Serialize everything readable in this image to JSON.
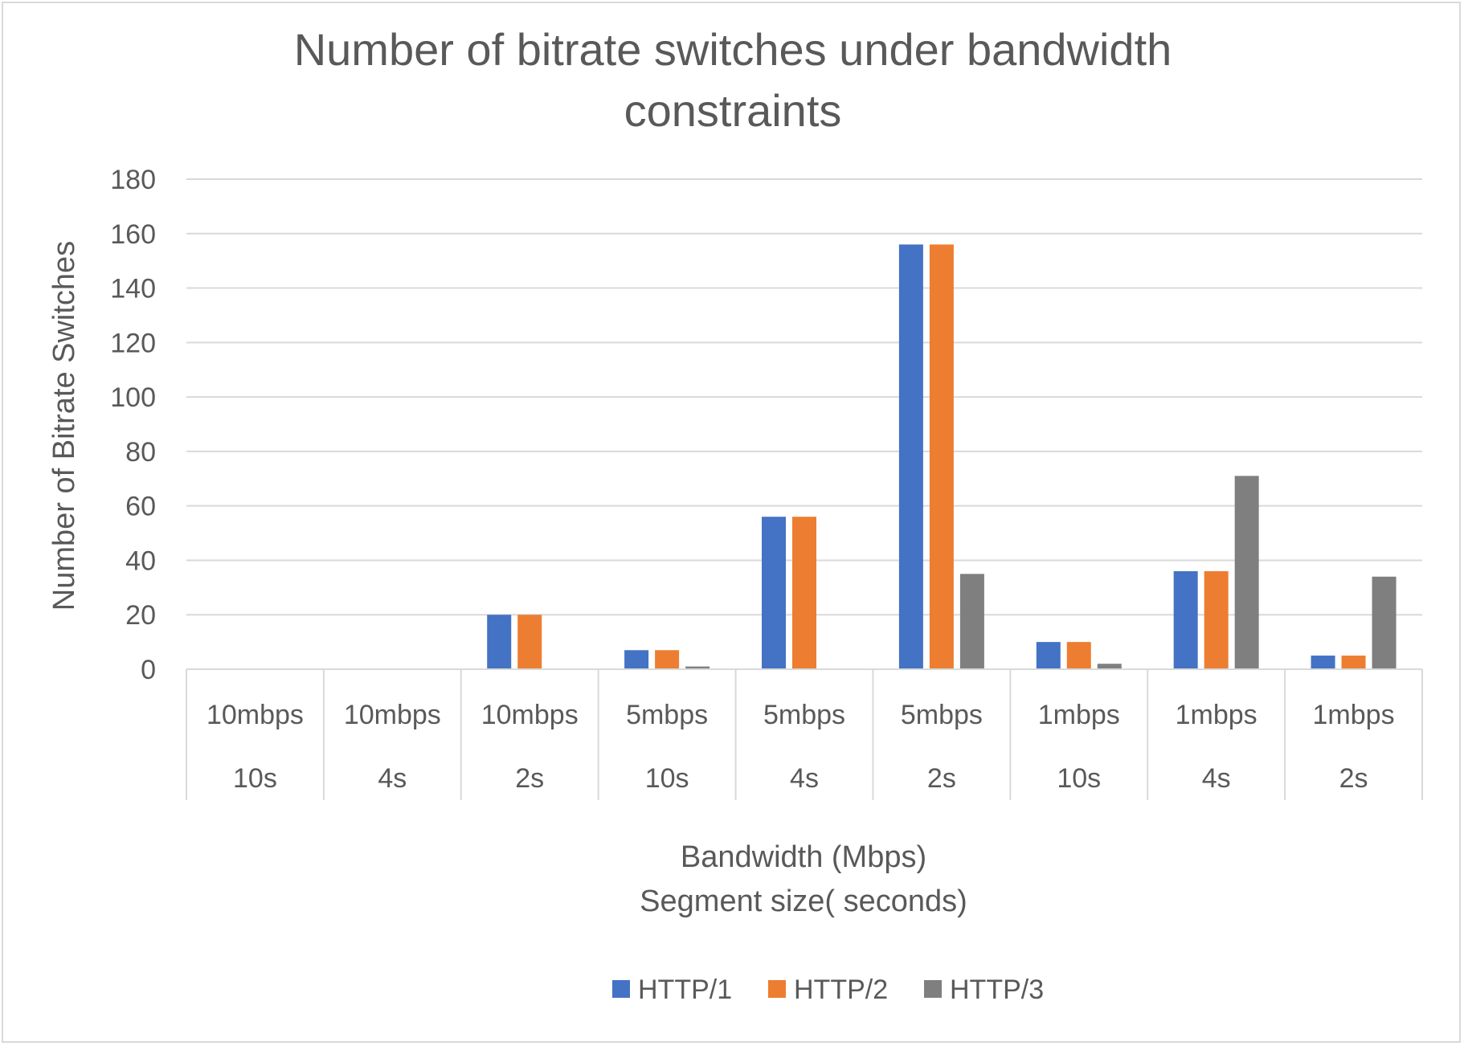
{
  "chart_data": {
    "type": "bar",
    "title": "Number of bitrate switches under bandwidth constraints",
    "title_lines": [
      "Number of bitrate switches under bandwidth",
      "constraints"
    ],
    "xlabel_lines": [
      "Bandwidth (Mbps)",
      "Segment size( seconds)"
    ],
    "ylabel": "Number of Bitrate Switches",
    "ylim": [
      0,
      180
    ],
    "y_ticks": [
      0,
      20,
      40,
      60,
      80,
      100,
      120,
      140,
      160,
      180
    ],
    "grid": true,
    "legend_position": "bottom",
    "categories": [
      {
        "bandwidth": "10mbps",
        "segment": "10s"
      },
      {
        "bandwidth": "10mbps",
        "segment": "4s"
      },
      {
        "bandwidth": "10mbps",
        "segment": "2s"
      },
      {
        "bandwidth": "5mbps",
        "segment": "10s"
      },
      {
        "bandwidth": "5mbps",
        "segment": "4s"
      },
      {
        "bandwidth": "5mbps",
        "segment": "2s"
      },
      {
        "bandwidth": "1mbps",
        "segment": "10s"
      },
      {
        "bandwidth": "1mbps",
        "segment": "4s"
      },
      {
        "bandwidth": "1mbps",
        "segment": "2s"
      }
    ],
    "series": [
      {
        "name": "HTTP/1",
        "color": "#4472c4",
        "values": [
          0,
          0,
          20,
          7,
          56,
          156,
          10,
          36,
          5
        ]
      },
      {
        "name": "HTTP/2",
        "color": "#ed7d31",
        "values": [
          0,
          0,
          20,
          7,
          56,
          156,
          10,
          36,
          5
        ]
      },
      {
        "name": "HTTP/3",
        "color": "#7f7f7f",
        "values": [
          0,
          0,
          0,
          1,
          0,
          35,
          2,
          71,
          34
        ]
      }
    ],
    "colors": {
      "grid": "#d9d9d9",
      "text": "#595959"
    }
  }
}
